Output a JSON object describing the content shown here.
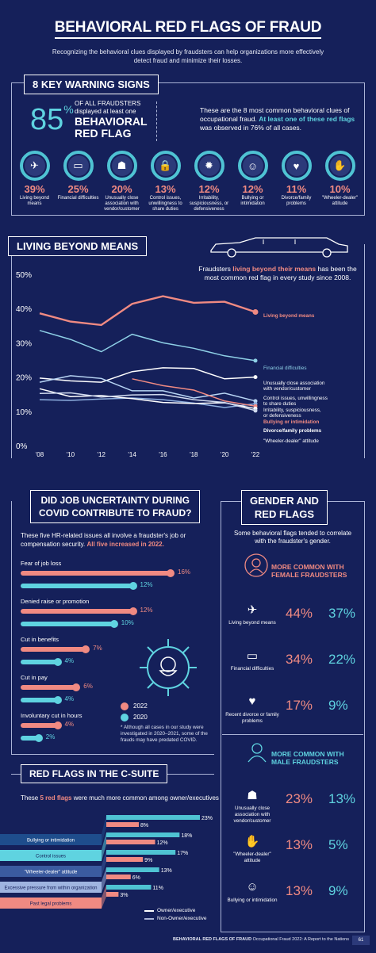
{
  "header": {
    "title": "BEHAVIORAL RED FLAGS OF FRAUD",
    "subtitle": "Recognizing the behavioral clues displayed by fraudsters can help organizations more effectively detect fraud and minimize their losses."
  },
  "warning": {
    "heading": "8 KEY WARNING SIGNS",
    "big_pct": "85",
    "pct_sign": "%",
    "of_all": "OF ALL FRAUDSTERS",
    "displayed": "displayed at least one",
    "behavioral": "BEHAVIORAL",
    "red_flag": "RED FLAG",
    "desc1": "These are the 8 most common behavioral clues of occupational fraud.",
    "desc2": "At least one of these red flags",
    "desc3": "was observed in 76% of all cases.",
    "items": [
      {
        "pct": "39%",
        "label": "Living beyond means",
        "icon": "✈"
      },
      {
        "pct": "25%",
        "label": "Financial difficulties",
        "icon": "▭"
      },
      {
        "pct": "20%",
        "label": "Unusually close association with vendor/customer",
        "icon": "☗"
      },
      {
        "pct": "13%",
        "label": "Control issues, unwillingness to share duties",
        "icon": "🔒"
      },
      {
        "pct": "12%",
        "label": "Irritability, suspiciousness, or defensiveness",
        "icon": "✹"
      },
      {
        "pct": "12%",
        "label": "Bullying or intimidation",
        "icon": "☺"
      },
      {
        "pct": "11%",
        "label": "Divorce/family problems",
        "icon": "♥"
      },
      {
        "pct": "10%",
        "label": "\"Wheeler-dealer\" attitude",
        "icon": "✋"
      }
    ]
  },
  "living": {
    "heading": "LIVING BEYOND MEANS",
    "desc1": "Fraudsters",
    "desc_hl": "living beyond their means",
    "desc2": "has been the most common red flag in every study since 2008."
  },
  "chart_data": {
    "type": "line",
    "x": [
      "'08",
      "'10",
      "'12",
      "'14",
      "'16",
      "'18",
      "'20",
      "'22"
    ],
    "yticks": [
      "0%",
      "10%",
      "20%",
      "30%",
      "40%",
      "50%"
    ],
    "ylim": [
      0,
      50
    ],
    "series": [
      {
        "name": "Living beyond means",
        "values": [
          38.6,
          36.2,
          35.2,
          41.4,
          43.6,
          41.7,
          42.0,
          39.0
        ],
        "color": "#f08a82"
      },
      {
        "name": "Financial difficulties",
        "values": [
          33.6,
          31.0,
          27.4,
          32.5,
          30.0,
          28.4,
          26.2,
          24.8
        ],
        "color": "#8ed0e6"
      },
      {
        "name": "Unusually close association with vendor/customer",
        "values": [
          19.7,
          18.9,
          18.5,
          21.6,
          22.7,
          22.5,
          19.5,
          20.0
        ],
        "color": "#ffffff"
      },
      {
        "name": "Control issues, unwillingness to share duties",
        "values": [
          18.5,
          20.4,
          19.6,
          16.0,
          16.0,
          13.9,
          15.3,
          13.0
        ],
        "color": "#b9d6f5"
      },
      {
        "name": "Irritability, suspiciousness, or defensiveness",
        "values": [
          13.4,
          13.2,
          13.6,
          13.9,
          13.4,
          12.4,
          11.1,
          12.2
        ],
        "color": "#8fb0e0"
      },
      {
        "name": "Bullying or intimidation",
        "values": [
          null,
          null,
          null,
          19.5,
          17.5,
          16.2,
          13.0,
          11.5
        ],
        "color": "#f08a82"
      },
      {
        "name": "Divorce/family problems",
        "values": [
          16.6,
          14.3,
          14.6,
          13.7,
          12.6,
          12.3,
          12.5,
          10.8
        ],
        "color": "#ffffff"
      },
      {
        "name": "\"Wheeler-dealer\" attitude",
        "values": [
          15.2,
          15.4,
          14.2,
          14.8,
          14.9,
          13.4,
          12.6,
          10.2
        ],
        "color": "#cfd9ee"
      }
    ]
  },
  "covid": {
    "heading1": "DID JOB UNCERTAINTY DURING",
    "heading2": "COVID CONTRIBUTE TO FRAUD?",
    "desc": "These five HR-related issues all involve a fraudster's job or compensation security.",
    "desc_hl": "All five increased in 2022.",
    "items": [
      {
        "label": "Fear of job loss",
        "v2022": 16,
        "v2020": 12,
        "l2022": "16%",
        "l2020": "12%"
      },
      {
        "label": "Denied raise or promotion",
        "v2022": 12,
        "v2020": 10,
        "l2022": "12%",
        "l2020": "10%"
      },
      {
        "label": "Cut in benefits",
        "v2022": 7,
        "v2020": 4,
        "l2022": "7%",
        "l2020": "4%"
      },
      {
        "label": "Cut in pay",
        "v2022": 6,
        "v2020": 4,
        "l2022": "6%",
        "l2020": "4%"
      },
      {
        "label": "Involuntary cut in hours",
        "v2022": 4,
        "v2020": 2,
        "l2022": "4%",
        "l2020": "2%"
      }
    ],
    "legend2022": "2022",
    "legend2020": "2020",
    "note": "* Although all cases in our study were investigated in 2020–2021, some of the frauds may have predated COVID.",
    "virus_icon": "virus-icon"
  },
  "gender": {
    "heading1": "GENDER AND",
    "heading2": "RED FLAGS",
    "desc": "Some behavioral flags tended to correlate with the fraudster's gender.",
    "female_head": "MORE COMMON WITH FEMALE FRAUDSTERS",
    "female": [
      {
        "label": "Living beyond means",
        "f": "44%",
        "m": "37%",
        "icon": "✈"
      },
      {
        "label": "Financial difficulties",
        "f": "34%",
        "m": "22%",
        "icon": "▭"
      },
      {
        "label": "Recent divorce or family problems",
        "f": "17%",
        "m": "9%",
        "icon": "♥"
      }
    ],
    "male_head": "MORE COMMON WITH MALE FRAUDSTERS",
    "male": [
      {
        "label": "Unusually close association with vendor/customer",
        "f": "23%",
        "m": "13%",
        "icon": "☗"
      },
      {
        "label": "\"Wheeler-dealer\" attitude",
        "f": "13%",
        "m": "5%",
        "icon": "✋"
      },
      {
        "label": "Bullying or intimidation",
        "f": "13%",
        "m": "9%",
        "icon": "☺"
      }
    ]
  },
  "csuite": {
    "heading": "RED FLAGS IN THE C-SUITE",
    "desc1": "These",
    "desc_hl": "5 red flags",
    "desc2": "were much more common among owner/executives",
    "items": [
      {
        "label": "Bullying or intimidation",
        "own": 23,
        "non": 8,
        "lown": "23%",
        "lnon": "8%"
      },
      {
        "label": "Control issues",
        "own": 18,
        "non": 12,
        "lown": "18%",
        "lnon": "12%"
      },
      {
        "label": "\"Wheeler-dealer\" attitude",
        "own": 17,
        "non": 9,
        "lown": "17%",
        "lnon": "9%"
      },
      {
        "label": "Excessive pressure from within organization",
        "own": 13,
        "non": 6,
        "lown": "13%",
        "lnon": "6%"
      },
      {
        "label": "Past legal problems",
        "own": 11,
        "non": 3,
        "lown": "11%",
        "lnon": "3%"
      }
    ],
    "legend_own": "Owner/executive",
    "legend_non": "Non-Owner/executive"
  },
  "footer": {
    "bold": "BEHAVIORAL RED FLAGS OF FRAUD",
    "rest": "Occupational Fraud 2022: A Report to the Nations",
    "page": "61"
  }
}
